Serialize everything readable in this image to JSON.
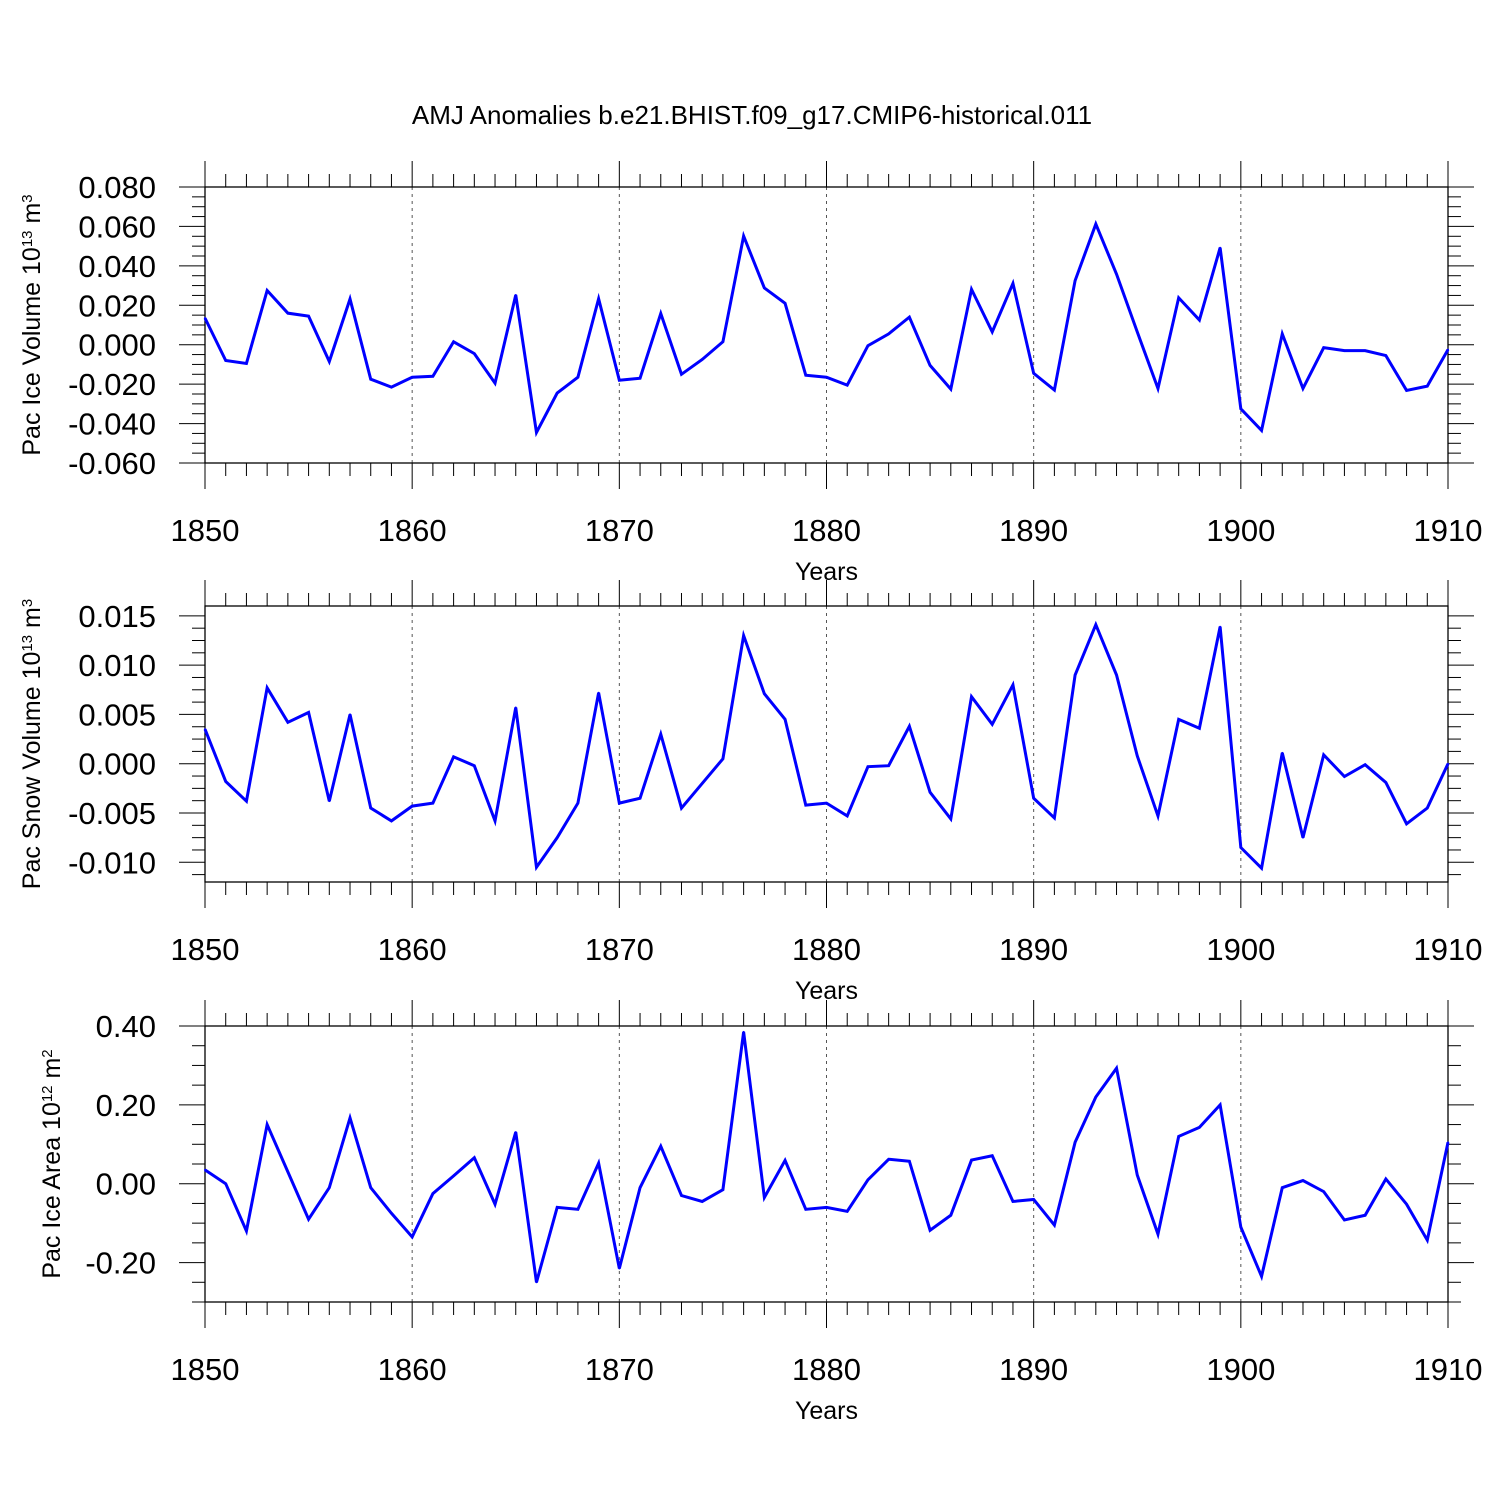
{
  "title": "AMJ Anomalies b.e21.BHIST.f09_g17.CMIP6-historical.011",
  "line_color": "#0000ff",
  "chart_data": [
    {
      "type": "line",
      "ylabel_main": "Pac Ice Volume 10",
      "ylabel_exp": "13",
      "ylabel_unit": " m",
      "ylabel_unit_exp": "3",
      "xlabel": "Years",
      "xlim": [
        1850,
        1910
      ],
      "ylim": [
        -0.06,
        0.08
      ],
      "xticks": [
        "1850",
        "1860",
        "1870",
        "1880",
        "1890",
        "1900",
        "1910"
      ],
      "yticks": [
        "0.080",
        "0.060",
        "0.040",
        "0.020",
        "0.000",
        "-0.020",
        "-0.040",
        "-0.060"
      ],
      "grid": "dashed vertical at major x ticks",
      "series": [
        {
          "x_start": 1850,
          "values": [
            0.0135,
            -0.008,
            -0.0095,
            0.0275,
            0.016,
            0.0145,
            -0.0085,
            0.0232,
            -0.0175,
            -0.0215,
            -0.0165,
            -0.016,
            0.0015,
            -0.0045,
            -0.0195,
            0.0252,
            -0.0445,
            -0.0245,
            -0.0165,
            0.0233,
            -0.018,
            -0.017,
            0.0158,
            -0.015,
            -0.0075,
            0.0015,
            0.0551,
            0.0288,
            0.021,
            -0.0155,
            -0.0165,
            -0.0205,
            -0.0005,
            0.0055,
            0.014,
            -0.0105,
            -0.0225,
            0.0281,
            0.0065,
            0.0311,
            -0.0145,
            -0.023,
            0.0325,
            0.0612,
            0.0358,
            0.0065,
            -0.0222,
            0.0238,
            0.0125,
            0.0492,
            -0.0325,
            -0.0435,
            0.0055,
            -0.0222,
            -0.0015,
            -0.003,
            -0.003,
            -0.0055,
            -0.0232,
            -0.021,
            -0.0025
          ]
        }
      ]
    },
    {
      "type": "line",
      "ylabel_main": "Pac Snow Volume 10",
      "ylabel_exp": "13",
      "ylabel_unit": " m",
      "ylabel_unit_exp": "3",
      "xlabel": "Years",
      "xlim": [
        1850,
        1910
      ],
      "ylim": [
        -0.012,
        0.016
      ],
      "xticks": [
        "1850",
        "1860",
        "1870",
        "1880",
        "1890",
        "1900",
        "1910"
      ],
      "yticks": [
        "0.015",
        "0.010",
        "0.005",
        "0.000",
        "-0.005",
        "-0.010"
      ],
      "grid": "dashed vertical at major x ticks",
      "series": [
        {
          "x_start": 1850,
          "values": [
            0.0035,
            -0.0018,
            -0.0038,
            0.0077,
            0.0042,
            0.0052,
            -0.0038,
            0.005,
            -0.0045,
            -0.0058,
            -0.0043,
            -0.004,
            0.0007,
            -0.0002,
            -0.0058,
            0.0057,
            -0.0105,
            -0.0075,
            -0.004,
            0.0072,
            -0.004,
            -0.0035,
            0.003,
            -0.0045,
            -0.002,
            0.0005,
            0.013,
            0.0071,
            0.0045,
            -0.0042,
            -0.004,
            -0.0053,
            -0.0003,
            -0.0002,
            0.0038,
            -0.0029,
            -0.0056,
            0.0068,
            0.004,
            0.008,
            -0.0035,
            -0.0055,
            0.009,
            0.0141,
            0.009,
            0.0008,
            -0.0053,
            0.0045,
            0.0036,
            0.0139,
            -0.0085,
            -0.0106,
            0.0011,
            -0.0075,
            0.0009,
            -0.0013,
            -0.0001,
            -0.0019,
            -0.0061,
            -0.0045,
            0.0
          ]
        }
      ]
    },
    {
      "type": "line",
      "ylabel_main": "Pac Ice Area 10",
      "ylabel_exp": "12",
      "ylabel_unit": " m",
      "ylabel_unit_exp": "2",
      "xlabel": "Years",
      "xlim": [
        1850,
        1910
      ],
      "ylim": [
        -0.3,
        0.4
      ],
      "xticks": [
        "1850",
        "1860",
        "1870",
        "1880",
        "1890",
        "1900",
        "1910"
      ],
      "yticks": [
        "0.40",
        "0.20",
        "0.00",
        "-0.20"
      ],
      "grid": "dashed vertical at major x ticks",
      "series": [
        {
          "x_start": 1850,
          "values": [
            0.035,
            0.0,
            -0.12,
            0.15,
            0.03,
            -0.09,
            -0.01,
            0.167,
            -0.01,
            -0.075,
            -0.135,
            -0.025,
            0.02,
            0.066,
            -0.052,
            0.131,
            -0.25,
            -0.06,
            -0.065,
            0.052,
            -0.215,
            -0.01,
            0.095,
            -0.03,
            -0.045,
            -0.015,
            0.385,
            -0.035,
            0.059,
            -0.065,
            -0.06,
            -0.07,
            0.01,
            0.062,
            0.057,
            -0.118,
            -0.08,
            0.06,
            0.071,
            -0.045,
            -0.04,
            -0.105,
            0.105,
            0.22,
            0.293,
            0.022,
            -0.128,
            0.12,
            0.143,
            0.2,
            -0.11,
            -0.235,
            -0.01,
            0.008,
            -0.02,
            -0.092,
            -0.08,
            0.012,
            -0.052,
            -0.143,
            0.105
          ]
        }
      ]
    }
  ]
}
